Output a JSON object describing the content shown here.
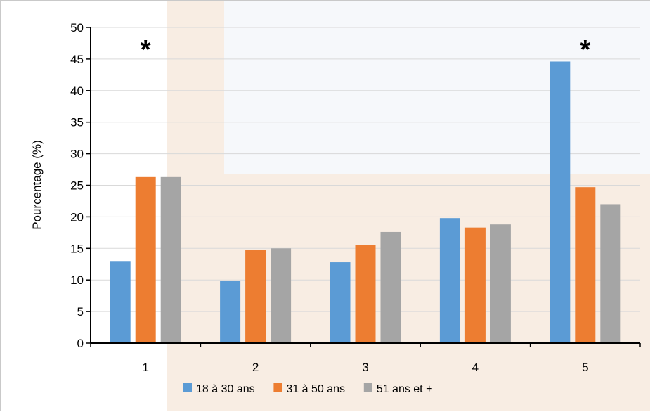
{
  "chart_data": {
    "type": "bar",
    "title": "",
    "xlabel": "",
    "ylabel": "Pourcentage (%)",
    "ylim": [
      0,
      50
    ],
    "yticks": [
      0,
      5,
      10,
      15,
      20,
      25,
      30,
      35,
      40,
      45,
      50
    ],
    "grid": true,
    "legend_position": "bottom",
    "categories": [
      "1",
      "2",
      "3",
      "4",
      "5"
    ],
    "series": [
      {
        "name": "18 à 30 ans",
        "color": "#5b9bd5",
        "values": [
          13.0,
          9.8,
          12.8,
          19.8,
          44.6
        ]
      },
      {
        "name": "31 à 50 ans",
        "color": "#ed7d31",
        "values": [
          26.3,
          14.8,
          15.5,
          18.3,
          24.7
        ]
      },
      {
        "name": "51 ans et +",
        "color": "#a5a5a5",
        "values": [
          26.3,
          15.0,
          17.6,
          18.8,
          22.0
        ]
      }
    ],
    "annotations": [
      {
        "text": "*",
        "category": "1"
      },
      {
        "text": "*",
        "category": "5"
      }
    ]
  }
}
